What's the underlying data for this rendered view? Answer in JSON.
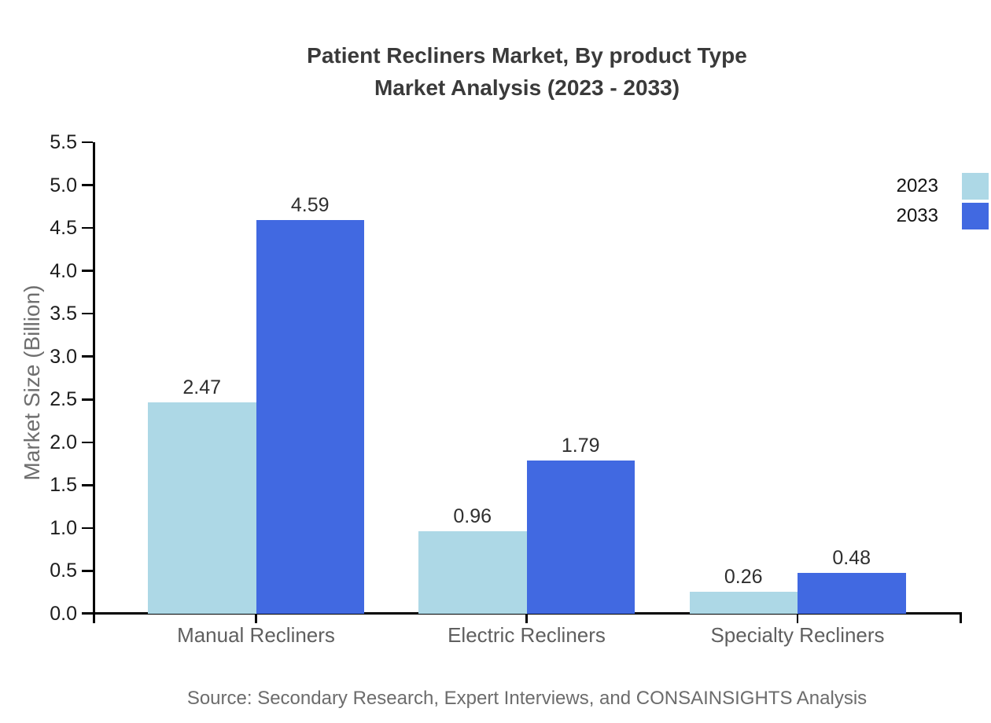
{
  "title": {
    "line1": "Patient Recliners Market, By product Type",
    "line2": "Market Analysis (2023 - 2033)"
  },
  "source": "Source: Secondary Research, Expert Interviews, and CONSAINSIGHTS Analysis",
  "chart_data": {
    "type": "bar",
    "categories": [
      "Manual Recliners",
      "Electric Recliners",
      "Specialty Recliners"
    ],
    "series": [
      {
        "name": "2023",
        "color": "#ADD8E6",
        "values": [
          2.47,
          0.96,
          0.26
        ]
      },
      {
        "name": "2033",
        "color": "#4169E1",
        "values": [
          4.59,
          1.79,
          0.48
        ]
      }
    ],
    "title": "Patient Recliners Market, By product Type Market Analysis (2023 - 2033)",
    "xlabel": "",
    "ylabel": "Market Size (Billion)",
    "ylim": [
      0.0,
      5.5
    ],
    "ytick_step": 0.5,
    "ytick_format_decimals": 1,
    "value_label_decimals": 2,
    "grid": false,
    "legend_position": "upper right"
  }
}
